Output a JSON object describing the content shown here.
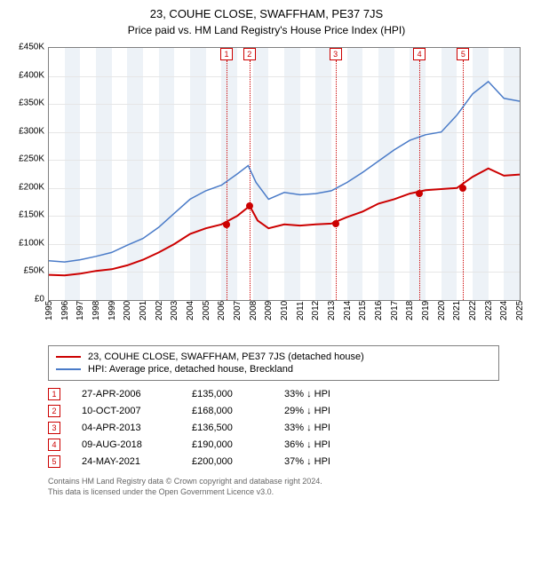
{
  "title1": "23, COUHE CLOSE, SWAFFHAM, PE37 7JS",
  "title2": "Price paid vs. HM Land Registry's House Price Index (HPI)",
  "chart": {
    "type": "line",
    "x_years": [
      1995,
      1996,
      1997,
      1998,
      1999,
      2000,
      2001,
      2002,
      2003,
      2004,
      2005,
      2006,
      2007,
      2008,
      2009,
      2010,
      2011,
      2012,
      2013,
      2014,
      2015,
      2016,
      2017,
      2018,
      2019,
      2020,
      2021,
      2022,
      2023,
      2024,
      2025
    ],
    "ylim": [
      0,
      450000
    ],
    "ytick_step": 50000,
    "ytick_labels": [
      "£0",
      "£50K",
      "£100K",
      "£150K",
      "£200K",
      "£250K",
      "£300K",
      "£350K",
      "£400K",
      "£450K"
    ],
    "band_years": [
      1996,
      1998,
      2000,
      2002,
      2004,
      2006,
      2008,
      2010,
      2012,
      2014,
      2016,
      2018,
      2020,
      2022,
      2024
    ],
    "background_color": "#ffffff",
    "grid_color": "#e6e6e6",
    "border_color": "#808080",
    "band_color": "#edf2f7",
    "series": {
      "hpi": {
        "color": "#4a7bc8",
        "width": 1.5,
        "points": [
          [
            1995,
            70000
          ],
          [
            1996,
            68000
          ],
          [
            1997,
            72000
          ],
          [
            1998,
            78000
          ],
          [
            1999,
            85000
          ],
          [
            2000,
            98000
          ],
          [
            2001,
            110000
          ],
          [
            2002,
            130000
          ],
          [
            2003,
            155000
          ],
          [
            2004,
            180000
          ],
          [
            2005,
            195000
          ],
          [
            2006,
            205000
          ],
          [
            2007,
            225000
          ],
          [
            2007.7,
            240000
          ],
          [
            2008.2,
            210000
          ],
          [
            2009,
            180000
          ],
          [
            2010,
            192000
          ],
          [
            2011,
            188000
          ],
          [
            2012,
            190000
          ],
          [
            2013,
            195000
          ],
          [
            2014,
            210000
          ],
          [
            2015,
            228000
          ],
          [
            2016,
            248000
          ],
          [
            2017,
            268000
          ],
          [
            2018,
            285000
          ],
          [
            2019,
            295000
          ],
          [
            2020,
            300000
          ],
          [
            2021,
            330000
          ],
          [
            2022,
            368000
          ],
          [
            2023,
            390000
          ],
          [
            2024,
            360000
          ],
          [
            2025,
            355000
          ]
        ]
      },
      "property": {
        "color": "#cc0000",
        "width": 2,
        "points": [
          [
            1995,
            45000
          ],
          [
            1996,
            44000
          ],
          [
            1997,
            47000
          ],
          [
            1998,
            52000
          ],
          [
            1999,
            55000
          ],
          [
            2000,
            62000
          ],
          [
            2001,
            72000
          ],
          [
            2002,
            85000
          ],
          [
            2003,
            100000
          ],
          [
            2004,
            118000
          ],
          [
            2005,
            128000
          ],
          [
            2006,
            135000
          ],
          [
            2007,
            150000
          ],
          [
            2007.8,
            168000
          ],
          [
            2008.3,
            142000
          ],
          [
            2009,
            128000
          ],
          [
            2010,
            135000
          ],
          [
            2011,
            133000
          ],
          [
            2012,
            135000
          ],
          [
            2013,
            136500
          ],
          [
            2014,
            148000
          ],
          [
            2015,
            158000
          ],
          [
            2016,
            172000
          ],
          [
            2017,
            180000
          ],
          [
            2018,
            190000
          ],
          [
            2019,
            196000
          ],
          [
            2020,
            198000
          ],
          [
            2021,
            200000
          ],
          [
            2022,
            220000
          ],
          [
            2023,
            235000
          ],
          [
            2024,
            222000
          ],
          [
            2025,
            224000
          ]
        ]
      }
    },
    "sale_markers": [
      {
        "n": "1",
        "year": 2006.32,
        "price": 135000
      },
      {
        "n": "2",
        "year": 2007.78,
        "price": 168000
      },
      {
        "n": "3",
        "year": 2013.26,
        "price": 136500
      },
      {
        "n": "4",
        "year": 2018.61,
        "price": 190000
      },
      {
        "n": "5",
        "year": 2021.4,
        "price": 200000
      }
    ]
  },
  "legend": {
    "property": "23, COUHE CLOSE, SWAFFHAM, PE37 7JS (detached house)",
    "hpi": "HPI: Average price, detached house, Breckland"
  },
  "sales": [
    {
      "n": "1",
      "date": "27-APR-2006",
      "price": "£135,000",
      "pct": "33% ↓ HPI"
    },
    {
      "n": "2",
      "date": "10-OCT-2007",
      "price": "£168,000",
      "pct": "29% ↓ HPI"
    },
    {
      "n": "3",
      "date": "04-APR-2013",
      "price": "£136,500",
      "pct": "33% ↓ HPI"
    },
    {
      "n": "4",
      "date": "09-AUG-2018",
      "price": "£190,000",
      "pct": "36% ↓ HPI"
    },
    {
      "n": "5",
      "date": "24-MAY-2021",
      "price": "£200,000",
      "pct": "37% ↓ HPI"
    }
  ],
  "footer1": "Contains HM Land Registry data © Crown copyright and database right 2024.",
  "footer2": "This data is licensed under the Open Government Licence v3.0."
}
